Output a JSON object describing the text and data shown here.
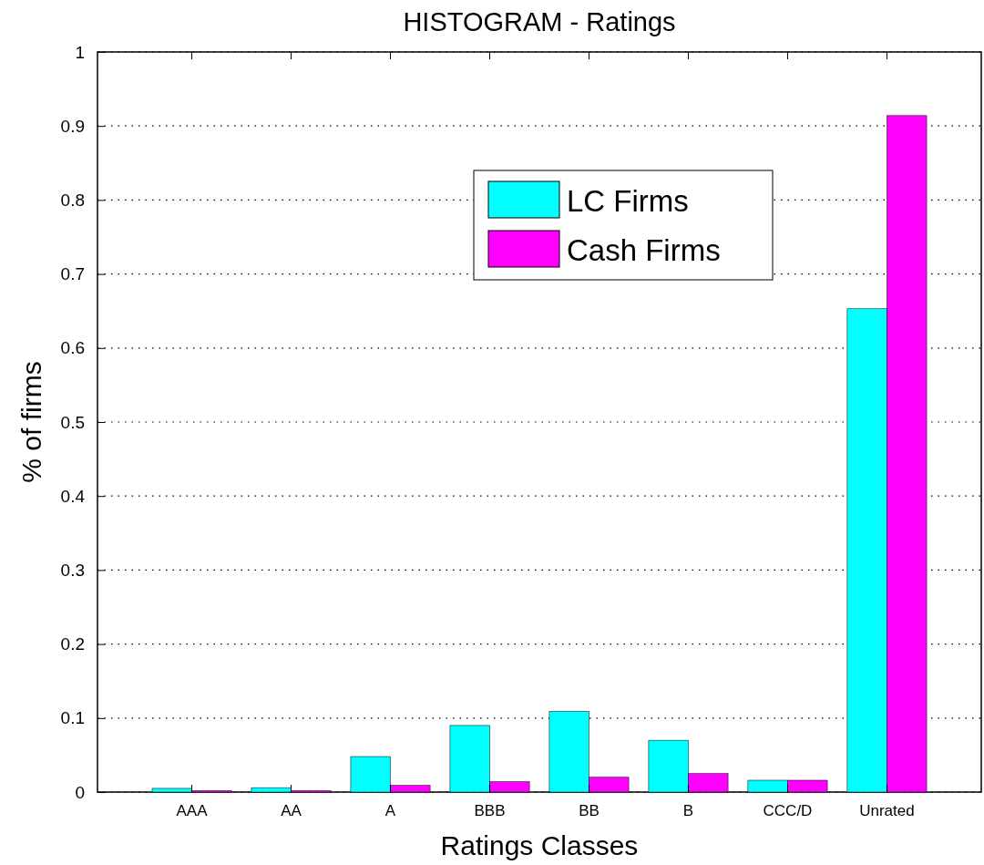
{
  "chart_data": {
    "type": "bar",
    "title": "HISTOGRAM - Ratings",
    "xlabel": "Ratings Classes",
    "ylabel": "% of firms",
    "categories": [
      "AAA",
      "AA",
      "A",
      "BBB",
      "BB",
      "B",
      "CCC/D",
      "Unrated"
    ],
    "series": [
      {
        "name": "LC Firms",
        "color": "#00ffff",
        "values": [
          0.005,
          0.006,
          0.048,
          0.09,
          0.109,
          0.07,
          0.016,
          0.653
        ]
      },
      {
        "name": "Cash Firms",
        "color": "#ff00ff",
        "values": [
          0.002,
          0.002,
          0.009,
          0.014,
          0.02,
          0.025,
          0.016,
          0.914
        ]
      }
    ],
    "ylim": [
      0,
      1
    ],
    "yticks": [
      0,
      0.1,
      0.2,
      0.3,
      0.4,
      0.5,
      0.6,
      0.7,
      0.8,
      0.9,
      1
    ],
    "grid": "y",
    "legend": "top"
  }
}
